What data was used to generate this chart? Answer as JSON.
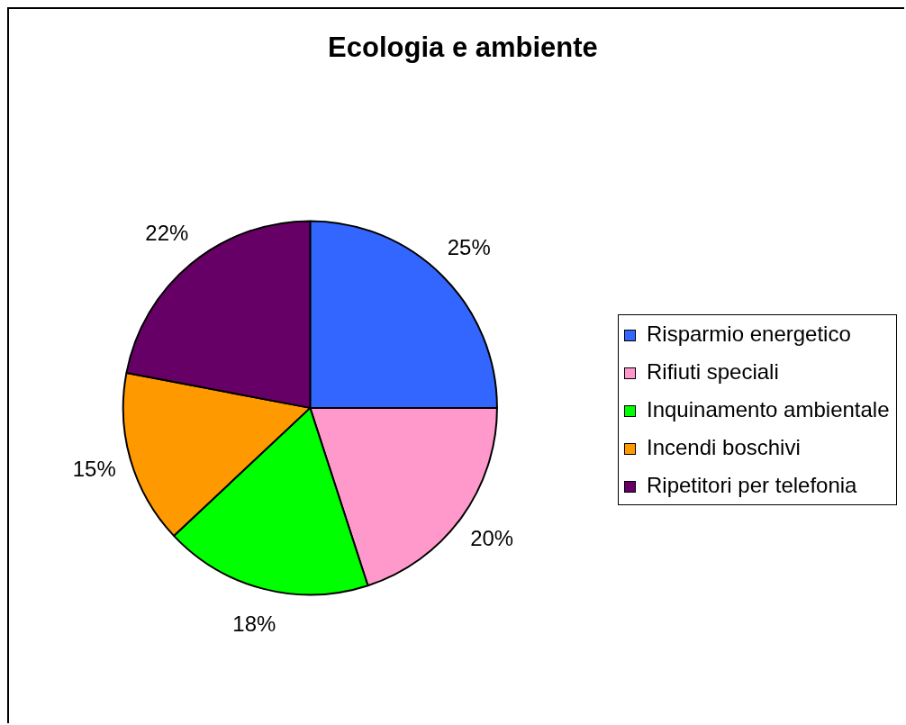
{
  "chart_data": {
    "type": "pie",
    "title": "Ecologia e ambiente",
    "categories": [
      "Risparmio energetico",
      "Rifiuti speciali",
      "Inquinamento ambientale",
      "Incendi boschivi",
      "Ripetitori per telefonia"
    ],
    "values": [
      25,
      20,
      18,
      15,
      22
    ],
    "colors": [
      "#3366ff",
      "#ff99cc",
      "#00ff00",
      "#ff9900",
      "#660066"
    ],
    "value_labels": [
      "25%",
      "20%",
      "18%",
      "15%",
      "22%"
    ],
    "legend": "right"
  }
}
